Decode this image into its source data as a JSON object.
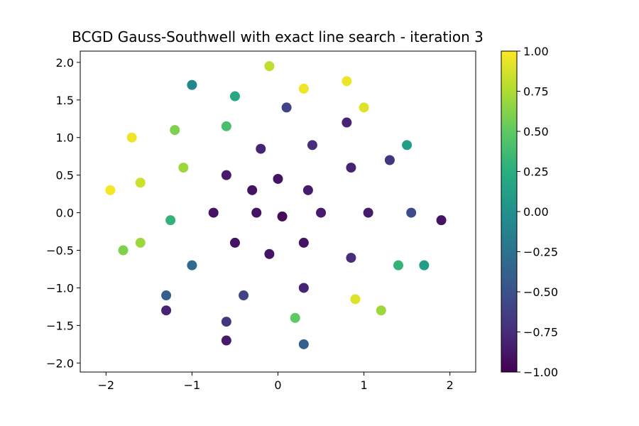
{
  "chart_data": {
    "type": "scatter",
    "title": "BCGD Gauss-Southwell with exact line search - iteration 3",
    "xlabel": "",
    "ylabel": "",
    "xlim": [
      -2.3,
      2.3
    ],
    "ylim": [
      -2.12,
      2.15
    ],
    "grid": false,
    "x_ticks": [
      -2,
      -1,
      0,
      1,
      2
    ],
    "x_tick_labels": [
      "−2",
      "−1",
      "0",
      "1",
      "2"
    ],
    "y_ticks": [
      2.0,
      1.5,
      1.0,
      0.5,
      0.0,
      -0.5,
      -1.0,
      -1.5,
      -2.0
    ],
    "y_tick_labels": [
      "2.0",
      "1.5",
      "1.0",
      "0.5",
      "0.0",
      "−0.5",
      "−1.0",
      "−1.5",
      "−2.0"
    ],
    "colorbar": {
      "colormap": "viridis",
      "range": [
        -1.0,
        1.0
      ],
      "ticks": [
        1.0,
        0.75,
        0.5,
        0.25,
        0.0,
        -0.25,
        -0.5,
        -0.75,
        -1.0
      ],
      "tick_labels": [
        "1.00",
        "0.75",
        "0.50",
        "0.25",
        "0.00",
        "−0.25",
        "−0.50",
        "−0.75",
        "−1.00"
      ],
      "placement": "right"
    },
    "series": [
      {
        "description": "two-arm spiral point cloud colored by predicted label",
        "points": [
          {
            "x": 0.05,
            "y": -0.05,
            "v": -0.95
          },
          {
            "x": -0.25,
            "y": 0.0,
            "v": -0.9
          },
          {
            "x": -0.3,
            "y": 0.3,
            "v": -0.9
          },
          {
            "x": 0.0,
            "y": 0.45,
            "v": -0.9
          },
          {
            "x": 0.35,
            "y": 0.3,
            "v": -0.85
          },
          {
            "x": 0.5,
            "y": 0.0,
            "v": -0.85
          },
          {
            "x": 0.3,
            "y": -0.4,
            "v": -0.9
          },
          {
            "x": -0.1,
            "y": -0.55,
            "v": -0.9
          },
          {
            "x": -0.5,
            "y": -0.4,
            "v": -0.9
          },
          {
            "x": -0.75,
            "y": 0.0,
            "v": -0.9
          },
          {
            "x": -0.6,
            "y": 0.5,
            "v": -0.85
          },
          {
            "x": -0.2,
            "y": 0.85,
            "v": -0.8
          },
          {
            "x": 0.4,
            "y": 0.9,
            "v": -0.75
          },
          {
            "x": 0.85,
            "y": 0.6,
            "v": -0.8
          },
          {
            "x": 1.05,
            "y": 0.0,
            "v": -0.85
          },
          {
            "x": 0.85,
            "y": -0.6,
            "v": -0.75
          },
          {
            "x": 0.3,
            "y": -1.0,
            "v": -0.8
          },
          {
            "x": -0.4,
            "y": -1.1,
            "v": -0.6
          },
          {
            "x": -1.0,
            "y": -0.7,
            "v": -0.3
          },
          {
            "x": -1.25,
            "y": -0.1,
            "v": 0.3
          },
          {
            "x": -1.1,
            "y": 0.6,
            "v": 0.7
          },
          {
            "x": -0.6,
            "y": 1.15,
            "v": 0.4
          },
          {
            "x": 0.1,
            "y": 1.4,
            "v": -0.6
          },
          {
            "x": 0.8,
            "y": 1.2,
            "v": -0.8
          },
          {
            "x": 1.3,
            "y": 0.7,
            "v": -0.7
          },
          {
            "x": 1.55,
            "y": 0.0,
            "v": -0.55
          },
          {
            "x": 1.4,
            "y": -0.7,
            "v": 0.3
          },
          {
            "x": 0.9,
            "y": -1.15,
            "v": 0.9
          },
          {
            "x": 0.2,
            "y": -1.4,
            "v": 0.5
          },
          {
            "x": -0.6,
            "y": -1.45,
            "v": -0.7
          },
          {
            "x": -1.3,
            "y": -1.1,
            "v": -0.4
          },
          {
            "x": -1.6,
            "y": -0.4,
            "v": 0.7
          },
          {
            "x": -1.6,
            "y": 0.4,
            "v": 0.85
          },
          {
            "x": -1.2,
            "y": 1.1,
            "v": 0.6
          },
          {
            "x": -0.5,
            "y": 1.55,
            "v": 0.2
          },
          {
            "x": 0.3,
            "y": 1.65,
            "v": 0.95
          },
          {
            "x": 1.0,
            "y": 1.4,
            "v": 0.9
          },
          {
            "x": 1.5,
            "y": 0.9,
            "v": 0.1
          },
          {
            "x": 1.9,
            "y": -0.1,
            "v": -0.9
          },
          {
            "x": 1.7,
            "y": -0.7,
            "v": 0.1
          },
          {
            "x": 1.2,
            "y": -1.3,
            "v": 0.7
          },
          {
            "x": 0.3,
            "y": -1.75,
            "v": -0.4
          },
          {
            "x": -0.6,
            "y": -1.7,
            "v": -0.85
          },
          {
            "x": -1.3,
            "y": -1.3,
            "v": -0.8
          },
          {
            "x": -1.8,
            "y": -0.5,
            "v": 0.6
          },
          {
            "x": -1.95,
            "y": 0.3,
            "v": 0.98
          },
          {
            "x": -1.7,
            "y": 1.0,
            "v": 0.95
          },
          {
            "x": -1.0,
            "y": 1.7,
            "v": -0.1
          },
          {
            "x": -0.1,
            "y": 1.95,
            "v": 0.8
          },
          {
            "x": 0.8,
            "y": 1.75,
            "v": 0.95
          }
        ]
      }
    ]
  }
}
